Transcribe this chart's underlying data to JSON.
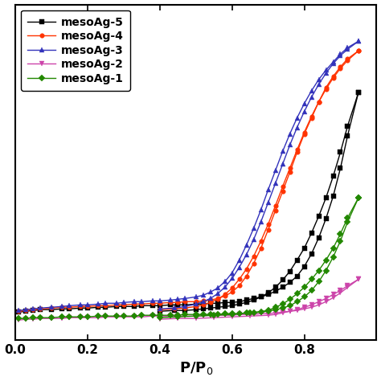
{
  "series": [
    {
      "label": "mesoAg-5",
      "color": "#000000",
      "marker": "s",
      "marker_size": 4,
      "adsorption_x": [
        0.01,
        0.03,
        0.05,
        0.07,
        0.1,
        0.13,
        0.15,
        0.18,
        0.2,
        0.23,
        0.25,
        0.28,
        0.3,
        0.33,
        0.35,
        0.38,
        0.4,
        0.43,
        0.45,
        0.47,
        0.5,
        0.52,
        0.54,
        0.56,
        0.58,
        0.6,
        0.62,
        0.64,
        0.66,
        0.68,
        0.7,
        0.72,
        0.74,
        0.76,
        0.78,
        0.8,
        0.82,
        0.84,
        0.86,
        0.88,
        0.9,
        0.92,
        0.95
      ],
      "adsorption_y": [
        35,
        36,
        37,
        38,
        38,
        39,
        39,
        40,
        40,
        41,
        41,
        42,
        42,
        42,
        43,
        43,
        43,
        44,
        44,
        44,
        45,
        45,
        46,
        46,
        47,
        47,
        48,
        50,
        52,
        54,
        57,
        61,
        66,
        72,
        80,
        92,
        108,
        128,
        152,
        180,
        215,
        256,
        310
      ],
      "desorption_x": [
        0.95,
        0.92,
        0.9,
        0.88,
        0.86,
        0.84,
        0.82,
        0.8,
        0.78,
        0.76,
        0.74,
        0.72,
        0.7,
        0.68,
        0.66,
        0.64,
        0.62,
        0.6,
        0.58,
        0.56,
        0.54,
        0.52,
        0.5,
        0.47,
        0.44,
        0.4
      ],
      "desorption_y": [
        310,
        268,
        235,
        205,
        178,
        155,
        134,
        115,
        100,
        86,
        75,
        66,
        59,
        54,
        50,
        47,
        45,
        43,
        42,
        41,
        40,
        39,
        38,
        37,
        37,
        36
      ]
    },
    {
      "label": "mesoAg-4",
      "color": "#ff3300",
      "marker": "o",
      "marker_size": 4,
      "adsorption_x": [
        0.01,
        0.03,
        0.05,
        0.07,
        0.1,
        0.13,
        0.15,
        0.18,
        0.2,
        0.23,
        0.25,
        0.28,
        0.3,
        0.33,
        0.35,
        0.38,
        0.4,
        0.43,
        0.45,
        0.47,
        0.5,
        0.52,
        0.54,
        0.56,
        0.58,
        0.6,
        0.62,
        0.64,
        0.66,
        0.68,
        0.7,
        0.72,
        0.74,
        0.76,
        0.78,
        0.8,
        0.82,
        0.84,
        0.86,
        0.88,
        0.9,
        0.92,
        0.95
      ],
      "adsorption_y": [
        36,
        37,
        38,
        39,
        40,
        41,
        41,
        42,
        42,
        43,
        43,
        44,
        44,
        45,
        45,
        46,
        46,
        47,
        47,
        48,
        48,
        49,
        50,
        52,
        55,
        60,
        68,
        80,
        96,
        115,
        138,
        162,
        186,
        210,
        235,
        258,
        278,
        298,
        316,
        330,
        342,
        352,
        362
      ],
      "desorption_x": [
        0.95,
        0.92,
        0.9,
        0.88,
        0.86,
        0.84,
        0.82,
        0.8,
        0.78,
        0.76,
        0.74,
        0.72,
        0.7,
        0.68,
        0.66,
        0.64,
        0.62,
        0.6,
        0.58,
        0.56,
        0.54,
        0.52,
        0.5,
        0.47,
        0.44,
        0.4
      ],
      "desorption_y": [
        362,
        350,
        340,
        328,
        314,
        298,
        280,
        260,
        238,
        215,
        192,
        168,
        145,
        124,
        105,
        89,
        76,
        65,
        57,
        51,
        47,
        44,
        42,
        40,
        39,
        38
      ]
    },
    {
      "label": "mesoAg-3",
      "color": "#3333bb",
      "marker": "^",
      "marker_size": 4,
      "adsorption_x": [
        0.01,
        0.03,
        0.05,
        0.07,
        0.1,
        0.13,
        0.15,
        0.18,
        0.2,
        0.23,
        0.25,
        0.28,
        0.3,
        0.33,
        0.35,
        0.38,
        0.4,
        0.43,
        0.45,
        0.47,
        0.5,
        0.52,
        0.54,
        0.56,
        0.58,
        0.6,
        0.62,
        0.64,
        0.66,
        0.68,
        0.7,
        0.72,
        0.74,
        0.76,
        0.78,
        0.8,
        0.82,
        0.84,
        0.86,
        0.88,
        0.9,
        0.92,
        0.95
      ],
      "adsorption_y": [
        37,
        38,
        39,
        40,
        41,
        42,
        43,
        44,
        44,
        45,
        46,
        46,
        47,
        48,
        48,
        49,
        49,
        50,
        51,
        52,
        54,
        56,
        60,
        65,
        73,
        84,
        100,
        119,
        140,
        163,
        188,
        212,
        236,
        258,
        278,
        296,
        312,
        326,
        338,
        348,
        358,
        366,
        374
      ],
      "desorption_x": [
        0.95,
        0.92,
        0.9,
        0.88,
        0.86,
        0.84,
        0.82,
        0.8,
        0.78,
        0.76,
        0.74,
        0.72,
        0.7,
        0.68,
        0.66,
        0.64,
        0.62,
        0.6,
        0.58,
        0.56,
        0.54,
        0.52,
        0.5,
        0.47,
        0.44,
        0.4
      ],
      "desorption_y": [
        374,
        364,
        356,
        346,
        334,
        320,
        304,
        286,
        266,
        244,
        220,
        196,
        172,
        148,
        126,
        107,
        91,
        77,
        66,
        58,
        52,
        48,
        45,
        42,
        40,
        39
      ]
    },
    {
      "label": "mesoAg-2",
      "color": "#cc44aa",
      "marker": "v",
      "marker_size": 4,
      "adsorption_x": [
        0.01,
        0.03,
        0.05,
        0.07,
        0.1,
        0.13,
        0.15,
        0.18,
        0.2,
        0.23,
        0.25,
        0.28,
        0.3,
        0.33,
        0.35,
        0.38,
        0.4,
        0.43,
        0.45,
        0.47,
        0.5,
        0.52,
        0.54,
        0.56,
        0.58,
        0.6,
        0.62,
        0.64,
        0.66,
        0.68,
        0.7,
        0.72,
        0.74,
        0.76,
        0.78,
        0.8,
        0.82,
        0.84,
        0.86,
        0.88,
        0.9,
        0.92,
        0.95
      ],
      "adsorption_y": [
        25,
        26,
        26,
        27,
        27,
        27,
        28,
        28,
        28,
        28,
        29,
        29,
        29,
        29,
        29,
        30,
        30,
        30,
        30,
        30,
        30,
        30,
        31,
        31,
        31,
        31,
        32,
        32,
        32,
        33,
        33,
        34,
        35,
        36,
        37,
        39,
        41,
        44,
        48,
        53,
        59,
        66,
        76
      ],
      "desorption_x": [
        0.95,
        0.92,
        0.9,
        0.88,
        0.86,
        0.84,
        0.82,
        0.8,
        0.78,
        0.76,
        0.74,
        0.72,
        0.7,
        0.65,
        0.6,
        0.55,
        0.5,
        0.45,
        0.4
      ],
      "desorption_y": [
        76,
        68,
        62,
        57,
        52,
        48,
        44,
        41,
        38,
        36,
        34,
        32,
        31,
        30,
        29,
        28,
        27,
        27,
        26
      ]
    },
    {
      "label": "mesoAg-1",
      "color": "#228800",
      "marker": "D",
      "marker_size": 4,
      "adsorption_x": [
        0.01,
        0.03,
        0.05,
        0.07,
        0.1,
        0.13,
        0.15,
        0.18,
        0.2,
        0.23,
        0.25,
        0.28,
        0.3,
        0.33,
        0.35,
        0.38,
        0.4,
        0.43,
        0.45,
        0.47,
        0.5,
        0.52,
        0.54,
        0.56,
        0.58,
        0.6,
        0.62,
        0.64,
        0.66,
        0.68,
        0.7,
        0.72,
        0.74,
        0.76,
        0.78,
        0.8,
        0.82,
        0.84,
        0.86,
        0.88,
        0.9,
        0.92,
        0.95
      ],
      "adsorption_y": [
        27,
        27,
        28,
        28,
        28,
        29,
        29,
        29,
        29,
        30,
        30,
        30,
        30,
        30,
        31,
        31,
        31,
        31,
        31,
        32,
        32,
        32,
        32,
        32,
        33,
        33,
        33,
        34,
        34,
        35,
        36,
        38,
        40,
        43,
        48,
        54,
        62,
        73,
        87,
        104,
        124,
        148,
        178
      ],
      "desorption_x": [
        0.95,
        0.92,
        0.9,
        0.88,
        0.86,
        0.84,
        0.82,
        0.8,
        0.78,
        0.76,
        0.74,
        0.72,
        0.7,
        0.65,
        0.6,
        0.55,
        0.5,
        0.45,
        0.4
      ],
      "desorption_y": [
        178,
        153,
        133,
        115,
        100,
        87,
        76,
        66,
        58,
        51,
        45,
        41,
        37,
        34,
        32,
        31,
        30,
        29,
        28
      ]
    }
  ],
  "xlabel": "P/P$_0$",
  "xlim": [
    0.0,
    1.0
  ],
  "ylim": [
    0,
    420
  ],
  "xticks": [
    0.0,
    0.2,
    0.4,
    0.6,
    0.8
  ],
  "legend_loc": "upper left",
  "line_width": 1.0,
  "background_color": "#ffffff"
}
